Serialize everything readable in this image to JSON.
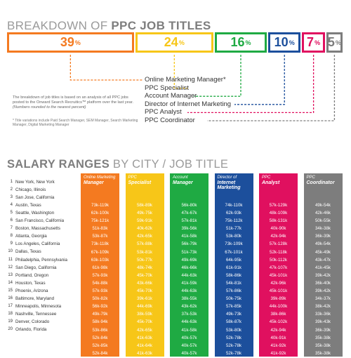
{
  "breakdown_title": {
    "prefix": "BREAKDOWN OF ",
    "bold": "PPC JOB TITLES"
  },
  "colors": {
    "omm": "#f47a20",
    "spec": "#f7c618",
    "am": "#1faa43",
    "dim": "#1c4f9c",
    "analyst": "#e0105f",
    "coord": "#7d7d7d"
  },
  "chart_data": [
    {
      "type": "bar",
      "orientation": "horizontal-stacked",
      "title": "BREAKDOWN OF PPC JOB TITLES",
      "categories": [
        "Online Marketing Manager*",
        "PPC Specialist",
        "Account Manager",
        "Director of Internet Marketing",
        "PPC Analyst",
        "PPC Coordinator"
      ],
      "values": [
        39,
        24,
        16,
        10,
        7,
        5
      ],
      "unit": "%"
    },
    {
      "type": "table",
      "title": "SALARY RANGES BY CITY / JOB TITLE",
      "columns": [
        {
          "key": "omm",
          "l1": "Online Marketing",
          "l2": "Manager"
        },
        {
          "key": "spec",
          "l1": "PPC",
          "l2": "Specialist"
        },
        {
          "key": "am",
          "l1": "Account",
          "l2": "Manager"
        },
        {
          "key": "dim",
          "l1": "Director of",
          "l2": "Internet Marketing"
        },
        {
          "key": "analyst",
          "l1": "PPC",
          "l2": "Analyst"
        },
        {
          "key": "coord",
          "l1": "PPC",
          "l2": "Coordinator"
        }
      ],
      "rows": [
        {
          "n": "1",
          "city": "New York, New York",
          "v": [
            "73k-119k",
            "58k-89k",
            "56k-80k",
            "74k-110k",
            "57k-129k",
            "49k-54k"
          ]
        },
        {
          "n": "2",
          "city": "Chicago, Illinois",
          "v": [
            "62k-100k",
            "49k-75k",
            "47k-67k",
            "62k-93k",
            "48k-109k",
            "42k-46k"
          ]
        },
        {
          "n": "3",
          "city": "San Jose, California",
          "v": [
            "75k-121k",
            "59k-91k",
            "57k-81k",
            "75k-112k",
            "58k-131k",
            "50k-55k"
          ]
        },
        {
          "n": "4",
          "city": "Austin, Texas",
          "v": [
            "51k-83k",
            "40k-62k",
            "39k-56k",
            "51k-77k",
            "40k-90k",
            "34k-38k"
          ]
        },
        {
          "n": "5",
          "city": "Seattle, Washington",
          "v": [
            "53k-87k",
            "42k-65k",
            "41k-58k",
            "53k-80k",
            "42k-94k",
            "36k-39k"
          ]
        },
        {
          "n": "6",
          "city": "San Francisco, California",
          "v": [
            "73k-118k",
            "57k-88k",
            "56k-79k",
            "73k-109k",
            "57k-128k",
            "49k-54k"
          ]
        },
        {
          "n": "7",
          "city": "Boston, Massachusetts",
          "v": [
            "67k-109k",
            "53k-81k",
            "51k-73k",
            "67k-101k",
            "52k-118k",
            "45k-49k"
          ]
        },
        {
          "n": "8",
          "city": "Atlanta, Georgia",
          "v": [
            "63k-103k",
            "50k-77k",
            "49k-69k",
            "64k-95k",
            "50k-112k",
            "43k-47k"
          ]
        },
        {
          "n": "9",
          "city": "Los Angeles, California",
          "v": [
            "61k-98k",
            "48k-74k",
            "46k-66k",
            "61k-91k",
            "47k-107k",
            "41k-45k"
          ]
        },
        {
          "n": "10",
          "city": "Dallas, Texas",
          "v": [
            "57k-93k",
            "45k-70k",
            "44k-63k",
            "58k-86k",
            "45k-101k",
            "39k-42k"
          ]
        },
        {
          "n": "11",
          "city": "Philadelphia, Pennsylvania",
          "v": [
            "54k-88k",
            "43k-66k",
            "41k-59k",
            "54k-81k",
            "42k-96k",
            "36k-40k"
          ]
        },
        {
          "n": "12",
          "city": "San Diego, California",
          "v": [
            "57k-93k",
            "45k-70k",
            "44k-63k",
            "57k-86k",
            "45k-101k",
            "39k-42k"
          ]
        },
        {
          "n": "13",
          "city": "Portland, Oregon",
          "v": [
            "50k-82k",
            "39k-61k",
            "38k-55k",
            "50k-75k",
            "39k-89k",
            "34k-37k"
          ]
        },
        {
          "n": "14",
          "city": "Houston, Texas",
          "v": [
            "56k-92k",
            "44k-69k",
            "43k-62k",
            "57k-85k",
            "44k-100k",
            "38k-42k"
          ]
        },
        {
          "n": "15",
          "city": "Phoenix, Arizona",
          "v": [
            "49k-79k",
            "38k-59k",
            "37k-53k",
            "49k-73k",
            "38k-86k",
            "33k-36k"
          ]
        },
        {
          "n": "16",
          "city": "Baltimore, Maryland",
          "v": [
            "58k-94k",
            "45k-70k",
            "44k-63k",
            "58k-87k",
            "45k-102k",
            "39k-43k"
          ]
        },
        {
          "n": "17",
          "city": "Minneapolis, Minnesota",
          "v": [
            "53k-86k",
            "42k-65k",
            "41k-58k",
            "53k-80k",
            "42k-94k",
            "36k-39k"
          ]
        },
        {
          "n": "18",
          "city": "Nashville, Tennessee",
          "v": [
            "52k-84k",
            "41k-63k",
            "40k-57k",
            "52k-78k",
            "40k-91k",
            "35k-38k"
          ]
        },
        {
          "n": "19",
          "city": "Denver, Colorado",
          "v": [
            "52k-85k",
            "41k-64k",
            "40k-57k",
            "52k-78k",
            "41k-92k",
            "35k-38k"
          ]
        },
        {
          "n": "20",
          "city": "Orlando, Florida",
          "v": [
            "52k-84k",
            "41k-63k",
            "40k-57k",
            "52k-78k",
            "41k-92k",
            "35k-38k"
          ]
        }
      ]
    }
  ],
  "note": "The breakdown of job titles is based on an analysis of all PPC jobs posted to the Onward Search Recruitics™ platform over the last year.",
  "note_round": "(Numbers rounded to the nearest percent)",
  "footnote": "* Title variations include Paid Search Manager, SEM Manager, Search Marketing Manager, Digital Marketing Manager",
  "salary_title": {
    "bold": "SALARY RANGES",
    "rest": " BY CITY / JOB TITLE"
  }
}
